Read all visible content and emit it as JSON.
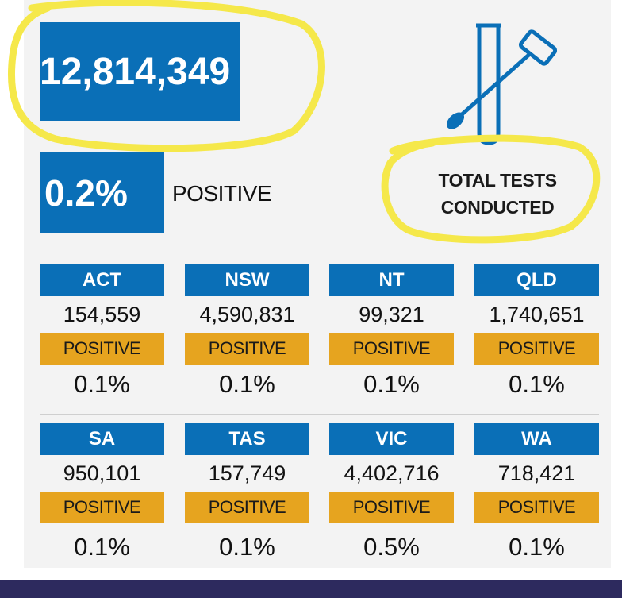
{
  "summary": {
    "total_tests": "12,814,349",
    "positive_percent": "0.2%",
    "positive_label": "POSITIVE",
    "total_tests_label_line1": "TOTAL TESTS",
    "total_tests_label_line2": "CONDUCTED"
  },
  "colors": {
    "blue": "#0a6fb7",
    "gold": "#e6a41f",
    "highlight": "#f5e84a",
    "footer": "#2d2a5e"
  },
  "icons": [
    "test-tube-swab-icon"
  ],
  "states": [
    {
      "name": "ACT",
      "tests": "154,559",
      "positive_label": "POSITIVE",
      "positive": "0.1%"
    },
    {
      "name": "NSW",
      "tests": "4,590,831",
      "positive_label": "POSITIVE",
      "positive": "0.1%"
    },
    {
      "name": "NT",
      "tests": "99,321",
      "positive_label": "POSITIVE",
      "positive": "0.1%"
    },
    {
      "name": "QLD",
      "tests": "1,740,651",
      "positive_label": "POSITIVE",
      "positive": "0.1%"
    },
    {
      "name": "SA",
      "tests": "950,101",
      "positive_label": "POSITIVE",
      "positive": "0.1%"
    },
    {
      "name": "TAS",
      "tests": "157,749",
      "positive_label": "POSITIVE",
      "positive": "0.1%"
    },
    {
      "name": "VIC",
      "tests": "4,402,716",
      "positive_label": "POSITIVE",
      "positive": "0.5%"
    },
    {
      "name": "WA",
      "tests": "718,421",
      "positive_label": "POSITIVE",
      "positive": "0.1%"
    }
  ]
}
